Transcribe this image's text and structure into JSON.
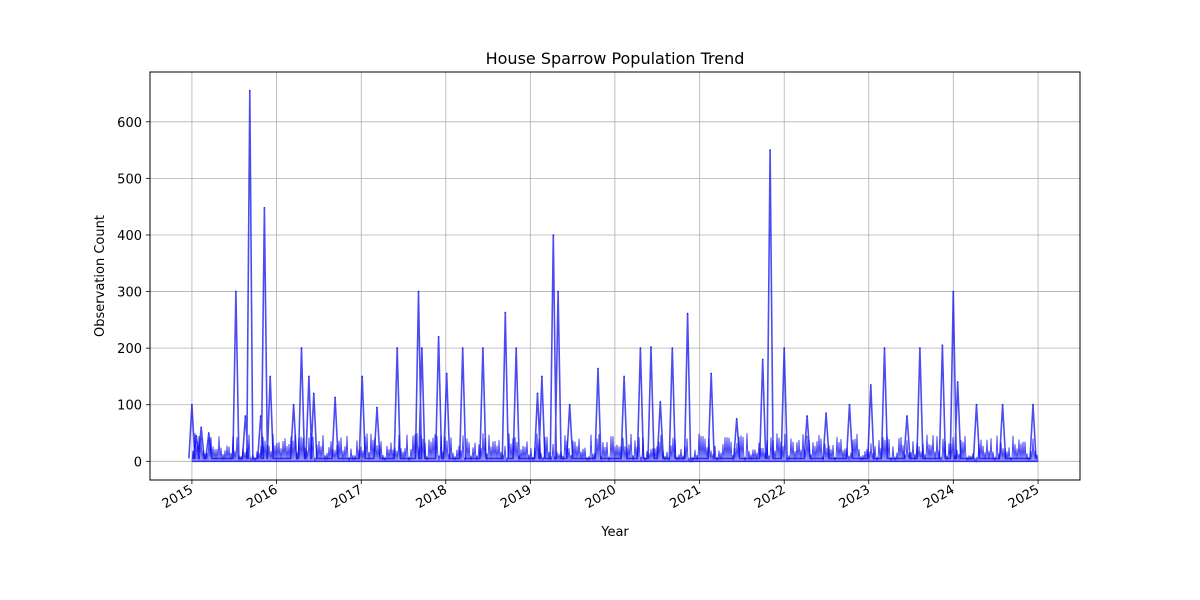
{
  "chart_data": {
    "type": "line",
    "title": "House Sparrow Population Trend",
    "xlabel": "Year",
    "ylabel": "Observation Count",
    "x_ticks": [
      "2015",
      "2016",
      "2017",
      "2018",
      "2019",
      "2020",
      "2021",
      "2022",
      "2023",
      "2024",
      "2025"
    ],
    "y_ticks": [
      "0",
      "100",
      "200",
      "300",
      "400",
      "500",
      "600"
    ],
    "xlim": [
      "2014-07-04",
      "2025-07-01"
    ],
    "ylim": [
      -33,
      688
    ],
    "grid": true,
    "legend": "none",
    "series": [
      {
        "color": "#0000ee",
        "points": [
          [
            "2015-01-01",
            100
          ],
          [
            "2015-01-20",
            45
          ],
          [
            "2015-02-10",
            60
          ],
          [
            "2015-03-15",
            50
          ],
          [
            "2015-07-10",
            300
          ],
          [
            "2015-08-20",
            80
          ],
          [
            "2015-09-08",
            655
          ],
          [
            "2015-10-25",
            80
          ],
          [
            "2015-11-10",
            448
          ],
          [
            "2015-12-05",
            150
          ],
          [
            "2016-03-15",
            100
          ],
          [
            "2016-04-18",
            200
          ],
          [
            "2016-05-20",
            150
          ],
          [
            "2016-06-10",
            120
          ],
          [
            "2016-09-10",
            113
          ],
          [
            "2017-01-05",
            150
          ],
          [
            "2017-03-10",
            95
          ],
          [
            "2017-06-05",
            200
          ],
          [
            "2017-09-05",
            300
          ],
          [
            "2017-09-20",
            200
          ],
          [
            "2017-12-01",
            220
          ],
          [
            "2018-01-05",
            155
          ],
          [
            "2018-03-15",
            200
          ],
          [
            "2018-06-10",
            200
          ],
          [
            "2018-09-15",
            263
          ],
          [
            "2018-11-01",
            200
          ],
          [
            "2019-02-01",
            120
          ],
          [
            "2019-02-20",
            150
          ],
          [
            "2019-04-10",
            400
          ],
          [
            "2019-05-01",
            300
          ],
          [
            "2019-06-20",
            100
          ],
          [
            "2019-10-20",
            164
          ],
          [
            "2020-02-10",
            150
          ],
          [
            "2020-04-20",
            200
          ],
          [
            "2020-06-05",
            202
          ],
          [
            "2020-07-15",
            105
          ],
          [
            "2020-09-05",
            200
          ],
          [
            "2020-11-10",
            261
          ],
          [
            "2021-02-20",
            155
          ],
          [
            "2021-06-10",
            75
          ],
          [
            "2021-09-30",
            180
          ],
          [
            "2021-11-01",
            550
          ],
          [
            "2022-01-01",
            200
          ],
          [
            "2022-04-10",
            80
          ],
          [
            "2022-07-01",
            85
          ],
          [
            "2022-10-10",
            100
          ],
          [
            "2023-01-10",
            135
          ],
          [
            "2023-03-10",
            200
          ],
          [
            "2023-06-15",
            80
          ],
          [
            "2023-08-10",
            200
          ],
          [
            "2023-11-15",
            205
          ],
          [
            "2024-01-01",
            300
          ],
          [
            "2024-01-20",
            140
          ],
          [
            "2024-04-10",
            100
          ],
          [
            "2024-08-01",
            100
          ],
          [
            "2024-12-10",
            100
          ]
        ]
      }
    ]
  }
}
